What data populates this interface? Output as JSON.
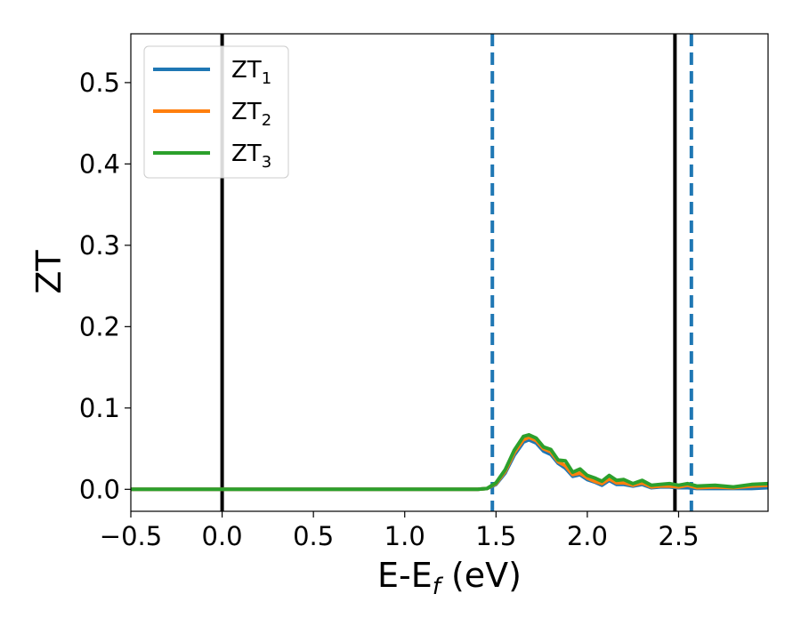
{
  "chart_data": {
    "type": "line",
    "title": "",
    "xlabel": {
      "main": "E-E",
      "sub": "f",
      "unit": " (eV)"
    },
    "ylabel": "ZT",
    "xlim": [
      -0.5,
      2.99
    ],
    "ylim": [
      -0.027,
      0.56
    ],
    "grid": false,
    "legend_position": "top-left",
    "x_ticks": [
      -0.5,
      0.0,
      0.5,
      1.0,
      1.5,
      2.0,
      2.5
    ],
    "x_tick_labels": [
      "−0.5",
      "0.0",
      "0.5",
      "1.0",
      "1.5",
      "2.0",
      "2.5"
    ],
    "y_ticks": [
      0.0,
      0.1,
      0.2,
      0.3,
      0.4,
      0.5
    ],
    "y_tick_labels": [
      "0.0",
      "0.1",
      "0.2",
      "0.3",
      "0.4",
      "0.5"
    ],
    "vertical_lines": [
      {
        "x": 0.0,
        "style": "solid",
        "color": "#000000"
      },
      {
        "x": 2.48,
        "style": "solid",
        "color": "#000000"
      },
      {
        "x": 1.48,
        "style": "dashed",
        "color": "#1f77b4"
      },
      {
        "x": 2.57,
        "style": "dashed",
        "color": "#1f77b4"
      }
    ],
    "series": [
      {
        "name": {
          "base": "ZT",
          "sub": "1"
        },
        "color": "#1f77b4",
        "x": [
          -0.5,
          1.4,
          1.45,
          1.5,
          1.55,
          1.6,
          1.65,
          1.68,
          1.72,
          1.76,
          1.8,
          1.84,
          1.88,
          1.92,
          1.96,
          2.0,
          2.04,
          2.08,
          2.12,
          2.16,
          2.2,
          2.25,
          2.3,
          2.35,
          2.4,
          2.45,
          2.5,
          2.55,
          2.6,
          2.7,
          2.8,
          2.9,
          2.99
        ],
        "y": [
          0.0,
          0.0,
          0.001,
          0.006,
          0.02,
          0.042,
          0.058,
          0.061,
          0.057,
          0.047,
          0.043,
          0.032,
          0.026,
          0.016,
          0.018,
          0.012,
          0.009,
          0.005,
          0.011,
          0.006,
          0.006,
          0.004,
          0.006,
          0.002,
          0.003,
          0.003,
          0.002,
          0.002,
          0.001,
          0.001,
          0.001,
          0.001,
          0.002
        ]
      },
      {
        "name": {
          "base": "ZT",
          "sub": "2"
        },
        "color": "#ff7f0e",
        "x": [
          -0.5,
          1.4,
          1.45,
          1.5,
          1.55,
          1.6,
          1.65,
          1.68,
          1.72,
          1.76,
          1.8,
          1.84,
          1.88,
          1.92,
          1.96,
          2.0,
          2.04,
          2.08,
          2.12,
          2.16,
          2.2,
          2.25,
          2.3,
          2.35,
          2.4,
          2.45,
          2.5,
          2.55,
          2.6,
          2.7,
          2.8,
          2.9,
          2.99
        ],
        "y": [
          0.0,
          0.0,
          0.001,
          0.007,
          0.022,
          0.045,
          0.061,
          0.064,
          0.06,
          0.05,
          0.046,
          0.034,
          0.029,
          0.018,
          0.02,
          0.014,
          0.01,
          0.007,
          0.013,
          0.008,
          0.008,
          0.005,
          0.008,
          0.003,
          0.004,
          0.004,
          0.003,
          0.005,
          0.002,
          0.003,
          0.002,
          0.004,
          0.005
        ]
      },
      {
        "name": {
          "base": "ZT",
          "sub": "3"
        },
        "color": "#2ca02c",
        "x": [
          -0.5,
          1.4,
          1.45,
          1.5,
          1.55,
          1.6,
          1.65,
          1.68,
          1.72,
          1.76,
          1.8,
          1.84,
          1.88,
          1.92,
          1.96,
          2.0,
          2.04,
          2.08,
          2.12,
          2.16,
          2.2,
          2.25,
          2.3,
          2.35,
          2.4,
          2.45,
          2.5,
          2.55,
          2.6,
          2.7,
          2.8,
          2.9,
          2.99
        ],
        "y": [
          0.0,
          0.0,
          0.001,
          0.008,
          0.024,
          0.048,
          0.065,
          0.067,
          0.063,
          0.052,
          0.049,
          0.036,
          0.035,
          0.021,
          0.025,
          0.017,
          0.014,
          0.01,
          0.017,
          0.011,
          0.012,
          0.007,
          0.011,
          0.005,
          0.006,
          0.007,
          0.005,
          0.007,
          0.004,
          0.005,
          0.003,
          0.006,
          0.007
        ]
      }
    ]
  }
}
